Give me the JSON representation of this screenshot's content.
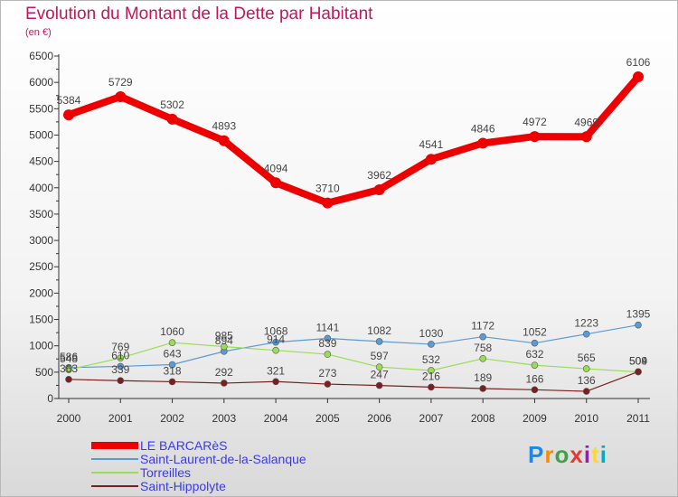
{
  "header": {
    "title": "Evolution du Montant de la Dette par Habitant",
    "subtitle": "(en €)"
  },
  "logo": {
    "text": "Proxiti",
    "colors": [
      "#1e88e5",
      "#fb8c00",
      "#43a047",
      "#e53935",
      "#8e24aa",
      "#fdd835",
      "#00acc1"
    ]
  },
  "chart_data": {
    "type": "line",
    "title": "Evolution du Montant de la Dette par Habitant",
    "ylabel": "(en €)",
    "xlabel": "",
    "x": [
      "2000",
      "2001",
      "2002",
      "2003",
      "2004",
      "2005",
      "2006",
      "2007",
      "2008",
      "2009",
      "2010",
      "2011"
    ],
    "ylim": [
      0,
      6500
    ],
    "yticks": [
      "0",
      "500",
      "1000",
      "1500",
      "2000",
      "2500",
      "3000",
      "3500",
      "4000",
      "4500",
      "5000",
      "5500",
      "6000",
      "6500"
    ],
    "grid": false,
    "legend_position": "bottom-left",
    "series": [
      {
        "name": "LE BARCARèS",
        "color": "#ee0000",
        "thick": true,
        "values": [
          5384,
          5729,
          5302,
          4893,
          4094,
          3710,
          3962,
          4541,
          4846,
          4972,
          4969,
          6106
        ],
        "labels": [
          "5384",
          "5729",
          "5302",
          "4893",
          "4094",
          "3710",
          "3962",
          "4541",
          "4846",
          "4972",
          "4969",
          "6106"
        ]
      },
      {
        "name": "Saint-Laurent-de-la-Salanque",
        "color": "#5b9bd5",
        "thick": false,
        "values": [
          586,
          610,
          643,
          894,
          1068,
          1141,
          1082,
          1030,
          1172,
          1052,
          1223,
          1395
        ],
        "labels": [
          "586",
          "610",
          "643",
          "894",
          "1068",
          "1141",
          "1082",
          "1030",
          "1172",
          "1052",
          "1223",
          "1395"
        ]
      },
      {
        "name": "Torreilles",
        "color": "#99dd55",
        "thick": false,
        "values": [
          548,
          769,
          1060,
          985,
          914,
          839,
          597,
          532,
          758,
          632,
          565,
          504
        ],
        "labels": [
          "548",
          "769",
          "1060",
          "985",
          "914",
          "839",
          "597",
          "532",
          "758",
          "632",
          "565",
          "504"
        ]
      },
      {
        "name": "Saint-Hippolyte",
        "color": "#7a2020",
        "thick": false,
        "values": [
          363,
          339,
          318,
          292,
          321,
          273,
          247,
          216,
          189,
          166,
          136,
          509
        ],
        "labels": [
          "363",
          "339",
          "318",
          "292",
          "321",
          "273",
          "247",
          "216",
          "189",
          "166",
          "136",
          "509"
        ]
      }
    ]
  }
}
